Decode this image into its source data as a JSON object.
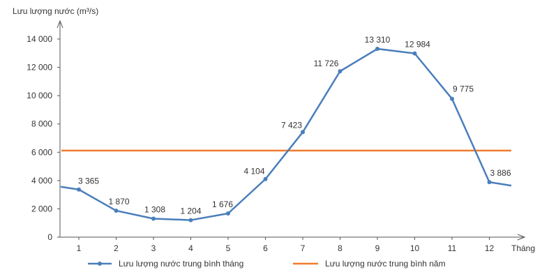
{
  "chart_data": {
    "type": "line",
    "ylabel": "Lưu lượng nước (m³/s)",
    "xlabel": "Tháng",
    "categories": [
      "1",
      "2",
      "3",
      "4",
      "5",
      "6",
      "7",
      "8",
      "9",
      "10",
      "11",
      "12"
    ],
    "ylim": [
      0,
      14000
    ],
    "yticks": [
      0,
      2000,
      4000,
      6000,
      8000,
      10000,
      12000,
      14000
    ],
    "ytick_labels": [
      "0",
      "2 000",
      "4 000",
      "6 000",
      "8 000",
      "10 000",
      "12 000",
      "14 000"
    ],
    "series": [
      {
        "name": "Lưu lượng nước trung bình tháng",
        "values": [
          3365,
          1870,
          1308,
          1204,
          1676,
          4104,
          7423,
          11726,
          13310,
          12984,
          9775,
          3886
        ],
        "value_labels": [
          "3 365",
          "1 870",
          "1 308",
          "1 204",
          "1 676",
          "4 104",
          "7 423",
          "11 726",
          "13 310",
          "12 984",
          "9 775",
          "3 886"
        ],
        "color": "#4a7ebb",
        "markers": true
      },
      {
        "name": "Lưu lượng nước trung bình năm",
        "value": 6120,
        "color": "#f07b2b",
        "markers": false
      }
    ],
    "legend": "bottom",
    "grid": false
  }
}
